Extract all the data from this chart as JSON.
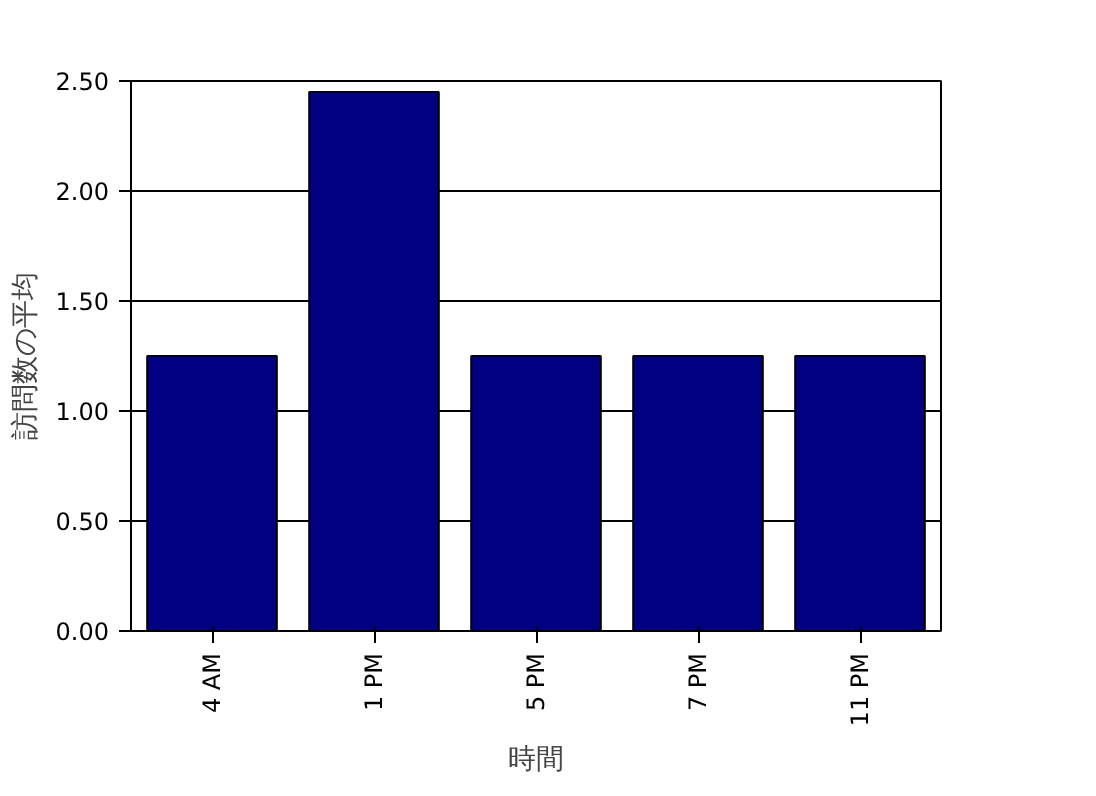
{
  "chart_data": {
    "type": "bar",
    "xlabel": "時間",
    "ylabel": "訪問数の平均",
    "categories": [
      "4 AM",
      "1 PM",
      "5 PM",
      "7 PM",
      "11 PM"
    ],
    "values": [
      1.25,
      2.45,
      1.25,
      1.25,
      1.25
    ],
    "color": "#000080",
    "ylim": [
      0,
      2.5
    ],
    "yticks": [
      {
        "value": 0,
        "label": "0.00"
      },
      {
        "value": 0.5,
        "label": "0.50"
      },
      {
        "value": 1,
        "label": "1.00"
      },
      {
        "value": 1.5,
        "label": "1.50"
      },
      {
        "value": 2,
        "label": "2.00"
      },
      {
        "value": 2.5,
        "label": "2.50"
      }
    ],
    "grid": "y"
  }
}
